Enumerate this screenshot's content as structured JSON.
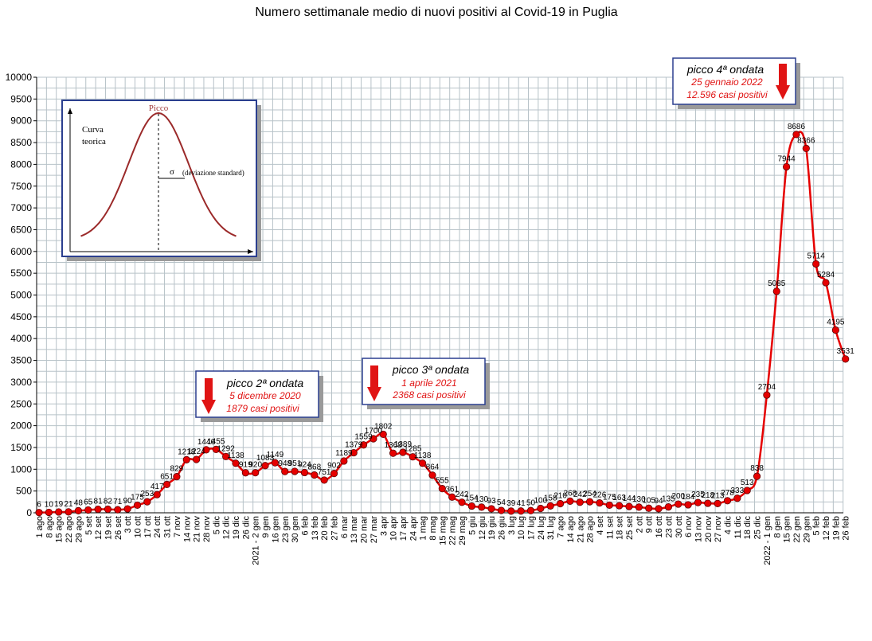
{
  "chart_data": {
    "type": "line",
    "title": "Numero settimanale medio di nuovi positivi al Covid-19 in Puglia",
    "xlabel": "",
    "ylabel": "",
    "ylim": [
      0,
      10000
    ],
    "yticks": [
      0,
      500,
      1000,
      1500,
      2000,
      2500,
      3000,
      3500,
      4000,
      4500,
      5000,
      5500,
      6000,
      6500,
      7000,
      7500,
      8000,
      8500,
      9000,
      9500,
      10000
    ],
    "grid": true,
    "line_color": "#e60000",
    "marker_color": "#e60000",
    "series": [
      {
        "categories": [
          "1 ago",
          "8 ago",
          "15 ago",
          "22 ago",
          "29 ago",
          "5 set",
          "12 set",
          "19 set",
          "26 set",
          "3 ott",
          "10 ott",
          "17 ott",
          "24 ott",
          "31 ott",
          "7 nov",
          "14 nov",
          "21 nov",
          "28 nov",
          "5 dic",
          "12 dic",
          "19 dic",
          "26 dic",
          "2021 - 2 gen",
          "9 gen",
          "16 gen",
          "23 gen",
          "30 gen",
          "6 feb",
          "13 feb",
          "20 feb",
          "27 feb",
          "6 mar",
          "13 mar",
          "20 mar",
          "27 mar",
          "3 apr",
          "10 apr",
          "17 apr",
          "24 apr",
          "1 mag",
          "8 mag",
          "15 mag",
          "22 mag",
          "29 mag",
          "5 giu",
          "12 giu",
          "19 giu",
          "26 giu",
          "3 lug",
          "10 lug",
          "17 lug",
          "24 lug",
          "31 lug",
          "7 ago",
          "14 ago",
          "21 ago",
          "28 ago",
          "4 set",
          "11 set",
          "18 set",
          "25 set",
          "2 ott",
          "9 ott",
          "16 ott",
          "23 ott",
          "30 ott",
          "6 nov",
          "13 nov",
          "20 nov",
          "27 nov",
          "4 dic",
          "11 dic",
          "18 dic",
          "25 dic",
          "2022 - 1 gen",
          "8 gen",
          "15 gen",
          "22 gen",
          "29 gen",
          "5 feb",
          "12 feb",
          "19 feb",
          "26 feb"
        ],
        "values": [
          6,
          10,
          19,
          21,
          48,
          65,
          81,
          82,
          71,
          90,
          175,
          253,
          417,
          651,
          829,
          1218,
          1224,
          1446,
          1455,
          1292,
          1138,
          919,
          920,
          1083,
          1149,
          948,
          951,
          924,
          868,
          751,
          902,
          1189,
          1379,
          1559,
          1700,
          1802,
          1368,
          1389,
          1285,
          1138,
          864,
          555,
          361,
          242,
          154,
          130,
          93,
          54,
          39,
          41,
          50,
          100,
          158,
          210,
          268,
          242,
          254,
          226,
          175,
          163,
          144,
          130,
          105,
          94,
          135,
          200,
          184,
          235,
          218,
          213,
          278,
          333,
          513,
          838,
          2704,
          5085,
          7944,
          8686,
          8366,
          5714,
          5284,
          4195,
          3531
        ],
        "labels": [
          "6",
          "10",
          "19",
          "21",
          "48",
          "65",
          "81",
          "82",
          "71",
          "90",
          "175",
          "253",
          "417",
          "651",
          "829",
          "1218",
          "1224",
          "1446",
          "1455",
          "1292",
          "1138",
          "919",
          "920",
          "1083",
          "1149",
          "948",
          "951",
          "924",
          "868",
          "751",
          "902",
          "1189",
          "1379",
          "1559",
          "1700",
          "1802",
          "1368",
          "1389",
          "1285",
          "1138",
          "864",
          "555",
          "361",
          "242",
          "154",
          "130",
          "93",
          "54",
          "39",
          "41",
          "50",
          "100",
          "158",
          "210",
          "268",
          "242",
          "254",
          "226",
          "175",
          "163",
          "144",
          "130",
          "105",
          "94",
          "135",
          "200",
          "184",
          "235",
          "218",
          "213",
          "278",
          "333",
          "513",
          "838",
          "2704",
          "5085",
          "7944",
          "8686",
          "8366",
          "5714",
          "5284",
          "4195",
          "3531"
        ]
      }
    ],
    "annotations": [
      {
        "title": "picco 2ª ondata",
        "line1": "5 dicembre 2020",
        "line2": "1879 casi positivi"
      },
      {
        "title": "picco 3ª ondata",
        "line1": "1 aprile 2021",
        "line2": "2368 casi positivi"
      },
      {
        "title": "picco 4ª ondata",
        "line1": "25 gennaio 2022",
        "line2": "12.596 casi positivi"
      }
    ],
    "inset": {
      "title": "Picco",
      "label_line1": "Curva",
      "label_line2": "teorica",
      "sigma": "σ",
      "sigma_label": "(deviazione standard)"
    }
  }
}
